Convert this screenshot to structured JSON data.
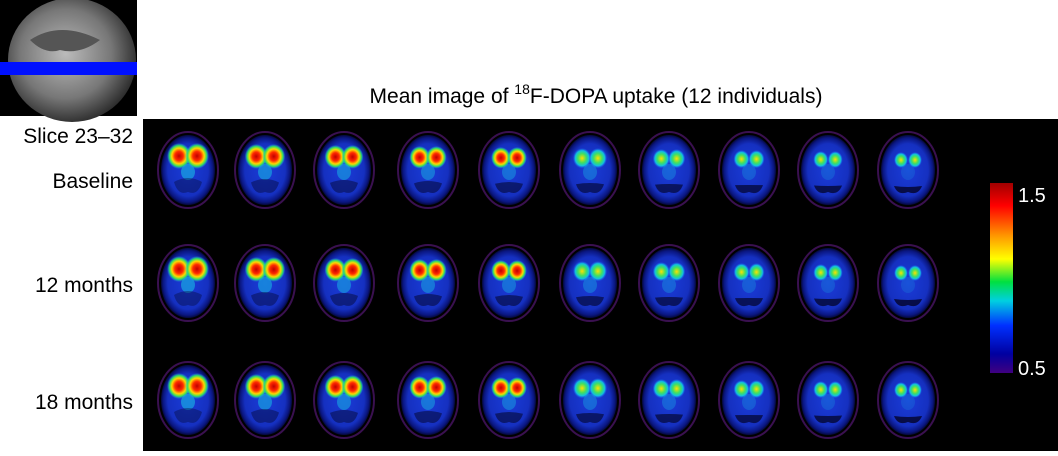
{
  "title": {
    "prefix": "Mean image of ",
    "superscript": "18",
    "suffix": "F-DOPA uptake (12 individuals)"
  },
  "slice_label": "Slice 23–32",
  "rows": [
    "Baseline",
    "12 months",
    "18 months"
  ],
  "colorbar": {
    "max": 1.5,
    "min": 0.5
  }
}
